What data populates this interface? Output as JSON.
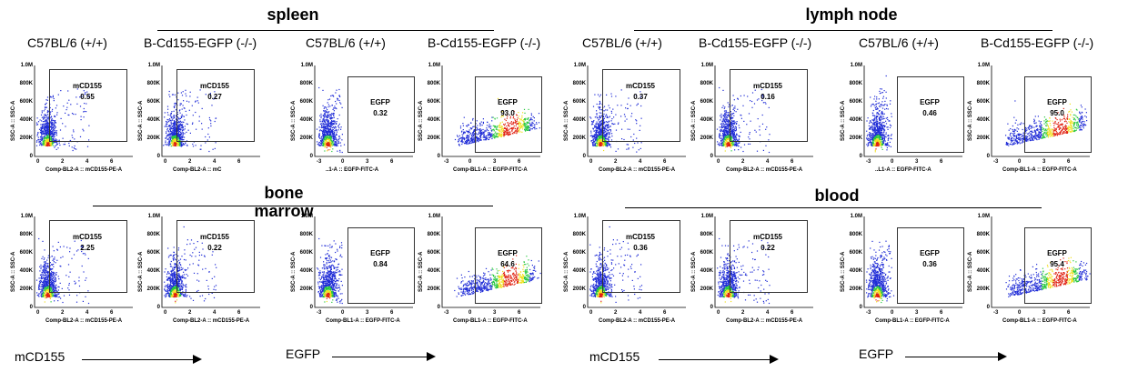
{
  "sections": {
    "spleen": "spleen",
    "lymph_node": "lymph node",
    "bone_marrow": "bone\nmarrow",
    "blood": "blood"
  },
  "column_headers": [
    "C57BL/6 (+/+)",
    "B-Cd155-EGFP (-/-)",
    "C57BL/6 (+/+)",
    "B-Cd155-EGFP (-/-)",
    "C57BL/6 (+/+)",
    "B-Cd155-EGFP (-/-)",
    "C57BL/6 (+/+)",
    "B-Cd155-EGFP (-/-)"
  ],
  "y_axis_label": "SSC-A :: SSC-A",
  "y_ticks": [
    "1.0M",
    "800K",
    "600K",
    "400K",
    "200K",
    "0"
  ],
  "x_ticks_pe": [
    "0",
    "2",
    "4",
    "6"
  ],
  "x_ticks_fitc": [
    "-3",
    "0",
    "3",
    "6"
  ],
  "panels": [
    {
      "xlabel": "Comp-BL2-A :: mCD155-PE-A",
      "gate": "mCD155",
      "value": "0.55"
    },
    {
      "xlabel": "Comp-BL2-A :: mC",
      "gate": "mCD155",
      "value": "0.27"
    },
    {
      "xlabel": "..1-A :: EGFP-FITC-A",
      "gate": "EGFP",
      "value": "0.32"
    },
    {
      "xlabel": "Comp-BL1-A :: EGFP-FITC-A",
      "gate": "EGFP",
      "value": "93.0"
    },
    {
      "xlabel": "Comp-BL2-A :: mCD155-PE-A",
      "gate": "mCD155",
      "value": "0.37"
    },
    {
      "xlabel": "Comp-BL2-A :: mCD155-PE-A",
      "gate": "mCD155",
      "value": "0.16"
    },
    {
      "xlabel": "..L1-A :: EGFP-FITC-A",
      "gate": "EGFP",
      "value": "0.46"
    },
    {
      "xlabel": "Comp-BL1-A :: EGFP-FITC-A",
      "gate": "EGFP",
      "value": "95.0"
    },
    {
      "xlabel": "Comp-BL2-A :: mCD155-PE-A",
      "gate": "mCD155",
      "value": "2.25"
    },
    {
      "xlabel": "Comp-BL2-A :: mCD155-PE-A",
      "gate": "mCD155",
      "value": "0.22"
    },
    {
      "xlabel": "Comp-BL1-A :: EGFP-FITC-A",
      "gate": "EGFP",
      "value": "0.84"
    },
    {
      "xlabel": "Comp-BL1-A :: EGFP-FITC-A",
      "gate": "EGFP",
      "value": "64.6"
    },
    {
      "xlabel": "Comp-BL2-A :: mCD155-PE-A",
      "gate": "mCD155",
      "value": "0.36"
    },
    {
      "xlabel": "Comp-BL2-A :: mCD155-PE-A",
      "gate": "mCD155",
      "value": "0.22"
    },
    {
      "xlabel": "Comp-BL1-A :: EGFP-FITC-A",
      "gate": "EGFP",
      "value": "0.36"
    },
    {
      "xlabel": "Comp-BL1-A :: EGFP-FITC-A",
      "gate": "EGFP",
      "value": "95.4"
    }
  ],
  "bottom_labels": [
    "mCD155",
    "EGFP",
    "mCD155",
    "EGFP"
  ],
  "colors": {
    "low": "#1e2bd6",
    "mid": "#28c840",
    "high": "#f0e020",
    "peak": "#e02010"
  }
}
